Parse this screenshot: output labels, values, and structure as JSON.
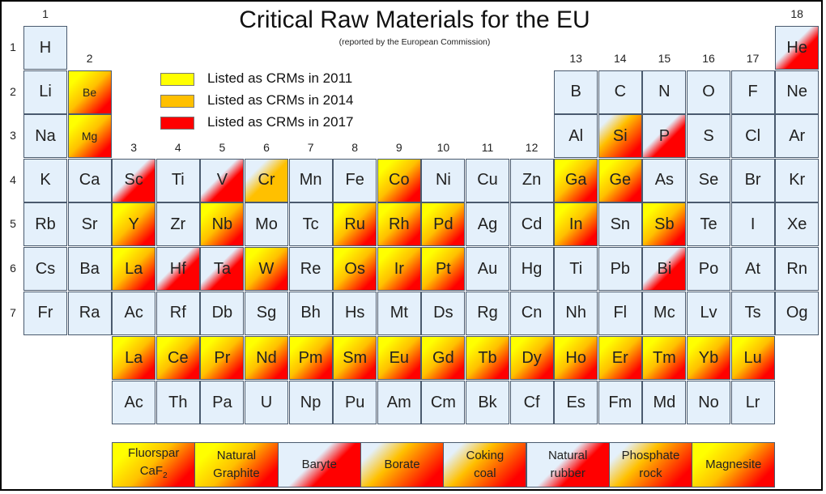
{
  "title": "Critical Raw Materials for the EU",
  "subtitle": "(reported by the European Commission)",
  "legend": [
    {
      "label": "Listed as CRMs in 2011",
      "color": "#ffff00"
    },
    {
      "label": "Listed as CRMs in 2014",
      "color": "#ffc000"
    },
    {
      "label": "Listed as CRMs in 2017",
      "color": "#ff0000"
    }
  ],
  "colors": {
    "base": "#e4f0fb",
    "y2011": "#ffff00",
    "y2014": "#ffc000",
    "y2017": "#ff0000"
  },
  "group_numbers": [
    "1",
    "2",
    "3",
    "4",
    "5",
    "6",
    "7",
    "8",
    "9",
    "10",
    "11",
    "12",
    "13",
    "14",
    "15",
    "16",
    "17",
    "18"
  ],
  "period_numbers": [
    "1",
    "2",
    "3",
    "4",
    "5",
    "6",
    "7"
  ],
  "elements": [
    {
      "s": "H",
      "p": 1,
      "g": 1,
      "c": "none"
    },
    {
      "s": "He",
      "p": 1,
      "g": 18,
      "c": "2017"
    },
    {
      "s": "Li",
      "p": 2,
      "g": 1,
      "c": "none"
    },
    {
      "s": "Be",
      "p": 2,
      "g": 2,
      "c": "all"
    },
    {
      "s": "B",
      "p": 2,
      "g": 13,
      "c": "none"
    },
    {
      "s": "C",
      "p": 2,
      "g": 14,
      "c": "none"
    },
    {
      "s": "N",
      "p": 2,
      "g": 15,
      "c": "none"
    },
    {
      "s": "O",
      "p": 2,
      "g": 16,
      "c": "none"
    },
    {
      "s": "F",
      "p": 2,
      "g": 17,
      "c": "none"
    },
    {
      "s": "Ne",
      "p": 2,
      "g": 18,
      "c": "none"
    },
    {
      "s": "Na",
      "p": 3,
      "g": 1,
      "c": "none"
    },
    {
      "s": "Mg",
      "p": 3,
      "g": 2,
      "c": "all"
    },
    {
      "s": "Al",
      "p": 3,
      "g": 13,
      "c": "none"
    },
    {
      "s": "Si",
      "p": 3,
      "g": 14,
      "c": "14-17"
    },
    {
      "s": "P",
      "p": 3,
      "g": 15,
      "c": "2017"
    },
    {
      "s": "S",
      "p": 3,
      "g": 16,
      "c": "none"
    },
    {
      "s": "Cl",
      "p": 3,
      "g": 17,
      "c": "none"
    },
    {
      "s": "Ar",
      "p": 3,
      "g": 18,
      "c": "none"
    },
    {
      "s": "K",
      "p": 4,
      "g": 1,
      "c": "none"
    },
    {
      "s": "Ca",
      "p": 4,
      "g": 2,
      "c": "none"
    },
    {
      "s": "Sc",
      "p": 4,
      "g": 3,
      "c": "2017"
    },
    {
      "s": "Ti",
      "p": 4,
      "g": 4,
      "c": "none"
    },
    {
      "s": "V",
      "p": 4,
      "g": 5,
      "c": "2017"
    },
    {
      "s": "Cr",
      "p": 4,
      "g": 6,
      "c": "2014"
    },
    {
      "s": "Mn",
      "p": 4,
      "g": 7,
      "c": "none"
    },
    {
      "s": "Fe",
      "p": 4,
      "g": 8,
      "c": "none"
    },
    {
      "s": "Co",
      "p": 4,
      "g": 9,
      "c": "all"
    },
    {
      "s": "Ni",
      "p": 4,
      "g": 10,
      "c": "none"
    },
    {
      "s": "Cu",
      "p": 4,
      "g": 11,
      "c": "none"
    },
    {
      "s": "Zn",
      "p": 4,
      "g": 12,
      "c": "none"
    },
    {
      "s": "Ga",
      "p": 4,
      "g": 13,
      "c": "all"
    },
    {
      "s": "Ge",
      "p": 4,
      "g": 14,
      "c": "all"
    },
    {
      "s": "As",
      "p": 4,
      "g": 15,
      "c": "none"
    },
    {
      "s": "Se",
      "p": 4,
      "g": 16,
      "c": "none"
    },
    {
      "s": "Br",
      "p": 4,
      "g": 17,
      "c": "none"
    },
    {
      "s": "Kr",
      "p": 4,
      "g": 18,
      "c": "none"
    },
    {
      "s": "Rb",
      "p": 5,
      "g": 1,
      "c": "none"
    },
    {
      "s": "Sr",
      "p": 5,
      "g": 2,
      "c": "none"
    },
    {
      "s": "Y",
      "p": 5,
      "g": 3,
      "c": "all"
    },
    {
      "s": "Zr",
      "p": 5,
      "g": 4,
      "c": "none"
    },
    {
      "s": "Nb",
      "p": 5,
      "g": 5,
      "c": "all"
    },
    {
      "s": "Mo",
      "p": 5,
      "g": 6,
      "c": "none"
    },
    {
      "s": "Tc",
      "p": 5,
      "g": 7,
      "c": "none"
    },
    {
      "s": "Ru",
      "p": 5,
      "g": 8,
      "c": "all"
    },
    {
      "s": "Rh",
      "p": 5,
      "g": 9,
      "c": "all"
    },
    {
      "s": "Pd",
      "p": 5,
      "g": 10,
      "c": "all"
    },
    {
      "s": "Ag",
      "p": 5,
      "g": 11,
      "c": "none"
    },
    {
      "s": "Cd",
      "p": 5,
      "g": 12,
      "c": "none"
    },
    {
      "s": "In",
      "p": 5,
      "g": 13,
      "c": "all"
    },
    {
      "s": "Sn",
      "p": 5,
      "g": 14,
      "c": "none"
    },
    {
      "s": "Sb",
      "p": 5,
      "g": 15,
      "c": "all"
    },
    {
      "s": "Te",
      "p": 5,
      "g": 16,
      "c": "none"
    },
    {
      "s": "I",
      "p": 5,
      "g": 17,
      "c": "none"
    },
    {
      "s": "Xe",
      "p": 5,
      "g": 18,
      "c": "none"
    },
    {
      "s": "Cs",
      "p": 6,
      "g": 1,
      "c": "none"
    },
    {
      "s": "Ba",
      "p": 6,
      "g": 2,
      "c": "none"
    },
    {
      "s": "La",
      "p": 6,
      "g": 3,
      "c": "all"
    },
    {
      "s": "Hf",
      "p": 6,
      "g": 4,
      "c": "2017"
    },
    {
      "s": "Ta",
      "p": 6,
      "g": 5,
      "c": "2017"
    },
    {
      "s": "W",
      "p": 6,
      "g": 6,
      "c": "all"
    },
    {
      "s": "Re",
      "p": 6,
      "g": 7,
      "c": "none"
    },
    {
      "s": "Os",
      "p": 6,
      "g": 8,
      "c": "all"
    },
    {
      "s": "Ir",
      "p": 6,
      "g": 9,
      "c": "all"
    },
    {
      "s": "Pt",
      "p": 6,
      "g": 10,
      "c": "all"
    },
    {
      "s": "Au",
      "p": 6,
      "g": 11,
      "c": "none"
    },
    {
      "s": "Hg",
      "p": 6,
      "g": 12,
      "c": "none"
    },
    {
      "s": "Ti",
      "p": 6,
      "g": 13,
      "c": "none"
    },
    {
      "s": "Pb",
      "p": 6,
      "g": 14,
      "c": "none"
    },
    {
      "s": "Bi",
      "p": 6,
      "g": 15,
      "c": "2017"
    },
    {
      "s": "Po",
      "p": 6,
      "g": 16,
      "c": "none"
    },
    {
      "s": "At",
      "p": 6,
      "g": 17,
      "c": "none"
    },
    {
      "s": "Rn",
      "p": 6,
      "g": 18,
      "c": "none"
    },
    {
      "s": "Fr",
      "p": 7,
      "g": 1,
      "c": "none"
    },
    {
      "s": "Ra",
      "p": 7,
      "g": 2,
      "c": "none"
    },
    {
      "s": "Ac",
      "p": 7,
      "g": 3,
      "c": "none"
    },
    {
      "s": "Rf",
      "p": 7,
      "g": 4,
      "c": "none"
    },
    {
      "s": "Db",
      "p": 7,
      "g": 5,
      "c": "none"
    },
    {
      "s": "Sg",
      "p": 7,
      "g": 6,
      "c": "none"
    },
    {
      "s": "Bh",
      "p": 7,
      "g": 7,
      "c": "none"
    },
    {
      "s": "Hs",
      "p": 7,
      "g": 8,
      "c": "none"
    },
    {
      "s": "Mt",
      "p": 7,
      "g": 9,
      "c": "none"
    },
    {
      "s": "Ds",
      "p": 7,
      "g": 10,
      "c": "none"
    },
    {
      "s": "Rg",
      "p": 7,
      "g": 11,
      "c": "none"
    },
    {
      "s": "Cn",
      "p": 7,
      "g": 12,
      "c": "none"
    },
    {
      "s": "Nh",
      "p": 7,
      "g": 13,
      "c": "none"
    },
    {
      "s": "Fl",
      "p": 7,
      "g": 14,
      "c": "none"
    },
    {
      "s": "Mc",
      "p": 7,
      "g": 15,
      "c": "none"
    },
    {
      "s": "Lv",
      "p": 7,
      "g": 16,
      "c": "none"
    },
    {
      "s": "Ts",
      "p": 7,
      "g": 17,
      "c": "none"
    },
    {
      "s": "Og",
      "p": 7,
      "g": 18,
      "c": "none"
    }
  ],
  "lanthanides": [
    {
      "s": "La",
      "c": "all"
    },
    {
      "s": "Ce",
      "c": "all"
    },
    {
      "s": "Pr",
      "c": "all"
    },
    {
      "s": "Nd",
      "c": "all"
    },
    {
      "s": "Pm",
      "c": "all"
    },
    {
      "s": "Sm",
      "c": "all"
    },
    {
      "s": "Eu",
      "c": "all"
    },
    {
      "s": "Gd",
      "c": "all"
    },
    {
      "s": "Tb",
      "c": "all"
    },
    {
      "s": "Dy",
      "c": "all"
    },
    {
      "s": "Ho",
      "c": "all"
    },
    {
      "s": "Er",
      "c": "all"
    },
    {
      "s": "Tm",
      "c": "all"
    },
    {
      "s": "Yb",
      "c": "all"
    },
    {
      "s": "Lu",
      "c": "all"
    }
  ],
  "actinides": [
    {
      "s": "Ac",
      "c": "none"
    },
    {
      "s": "Th",
      "c": "none"
    },
    {
      "s": "Pa",
      "c": "none"
    },
    {
      "s": "U",
      "c": "none"
    },
    {
      "s": "Np",
      "c": "none"
    },
    {
      "s": "Pu",
      "c": "none"
    },
    {
      "s": "Am",
      "c": "none"
    },
    {
      "s": "Cm",
      "c": "none"
    },
    {
      "s": "Bk",
      "c": "none"
    },
    {
      "s": "Cf",
      "c": "none"
    },
    {
      "s": "Es",
      "c": "none"
    },
    {
      "s": "Fm",
      "c": "none"
    },
    {
      "s": "Md",
      "c": "none"
    },
    {
      "s": "No",
      "c": "none"
    },
    {
      "s": "Lr",
      "c": "none"
    }
  ],
  "minerals": [
    {
      "line1": "Fluorspar",
      "line2": "CaF",
      "line2_sub": "2",
      "c": "all"
    },
    {
      "line1": "Natural",
      "line2": "Graphite",
      "c": "all"
    },
    {
      "line1": "Baryte",
      "c": "2017"
    },
    {
      "line1": "Borate",
      "c": "14-17"
    },
    {
      "line1": "Coking",
      "line2": "coal",
      "c": "14-17"
    },
    {
      "line1": "Natural",
      "line2": "rubber",
      "c": "2017"
    },
    {
      "line1": "Phosphate",
      "line2": "rock",
      "c": "14-17"
    },
    {
      "line1": "Magnesite",
      "c": "all"
    }
  ]
}
